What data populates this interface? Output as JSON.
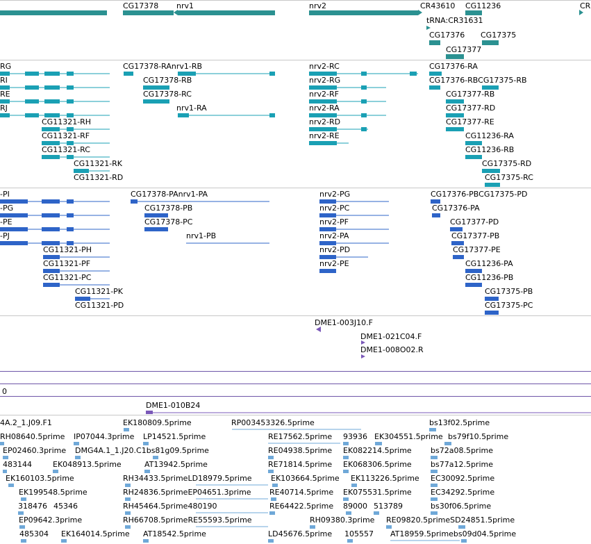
{
  "colors": {
    "gene": "#2b9191",
    "mrna": "#1aa0b4",
    "protein": "#2e64c8",
    "est": "#7a58b8",
    "line_top": "#c8c8c8",
    "line_purple": "#6e55a8",
    "cdna": "#6fa8d8"
  },
  "tracks": {
    "genes": {
      "labels": [
        "CG17378",
        "nrv1",
        "nrv2",
        "CR43610",
        "CG11236",
        "CR",
        "tRNA:CR31631",
        "CG17376",
        "CG17375",
        "CG17377"
      ]
    },
    "transcripts": {
      "labels": [
        "RG",
        "RI",
        "RE",
        "RJ",
        "CG11321-RH",
        "CG11321-RF",
        "CG11321-RC",
        "CG11321-RK",
        "CG11321-RD",
        "CG17378-RAnrv1-RB",
        "CG17378-RB",
        "CG17378-RC",
        "nrv1-RA",
        "nrv2-RC",
        "nrv2-RG",
        "nrv2-RF",
        "nrv2-RA",
        "nrv2-RD",
        "nrv2-RE",
        "CG17376-RA",
        "CG17376-RBCG17375-RB",
        "CG17377-RB",
        "CG17377-RD",
        "CG17377-RE",
        "CG11236-RA",
        "CG11236-RB",
        "CG17375-RD",
        "CG17375-RC"
      ]
    },
    "proteins": {
      "labels": [
        "-PI",
        "-PG",
        "-PE",
        "-PJ",
        "CG11321-PH",
        "CG11321-PF",
        "CG11321-PC",
        "CG11321-PK",
        "CG11321-PD",
        "CG17378-PAnrv1-PA",
        "CG17378-PB",
        "CG17378-PC",
        "nrv1-PB",
        "nrv2-PG",
        "nrv2-PC",
        "nrv2-PF",
        "nrv2-PA",
        "nrv2-PD",
        "nrv2-PE",
        "CG17376-PBCG17375-PD",
        "CG17376-PA",
        "CG17377-PD",
        "CG17377-PB",
        "CG17377-PE",
        "CG11236-PA",
        "CG11236-PB",
        "CG17375-PB",
        "CG17375-PC"
      ]
    },
    "ests": {
      "labels": [
        "DME1-003J10.F",
        "DME1-021C04.F",
        "DME1-008O02.R"
      ]
    },
    "coverage": {
      "value": "0"
    },
    "clones": {
      "labels": [
        "DME1-010B24"
      ]
    },
    "cdnas": {
      "labels": [
        "4A.2_1.J09.F1",
        "EK180809.5prime",
        "RP003453326.5prime",
        "bs13f02.5prime",
        "RH08640.5prime",
        "IP07044.3prime",
        "LP14521.5prime",
        "RE17562.5prime",
        "93936",
        "EK304551.5prime",
        "bs79f10.5prime",
        "EP02460.3prime",
        "DMG4A.1_1.J20.C1bs81g09.5prime",
        "RE04938.5prime",
        "EK082214.5prime",
        "bs72a08.5prime",
        "483144",
        "EK048913.5prime",
        "AT13942.5prime",
        "RE71814.5prime",
        "EK068306.5prime",
        "bs77a12.5prime",
        "EK160103.5prime",
        "RH34433.5primeLD18979.5prime",
        "EK103664.5prime",
        "EK113226.5prime",
        "EC30092.5prime",
        "EK199548.5prime",
        "RH24836.5primeEP04651.3prime",
        "RE40714.5prime",
        "EK075531.5prime",
        "EC34292.5prime",
        "318476",
        "45346",
        "RH45464.5prime480190",
        "RE64422.5prime",
        "89000",
        "513789",
        "bs30f06.5prime",
        "EP09642.3prime",
        "RH66708.5primeRE55593.5prime",
        "RH09380.3prime",
        "RE09820.5primeSD24851.5prime",
        "485304",
        "EK164014.5prime",
        "AT18542.5prime",
        "LD45676.5prime",
        "105557",
        "AT18959.5primebs09d04.5prime"
      ]
    }
  }
}
